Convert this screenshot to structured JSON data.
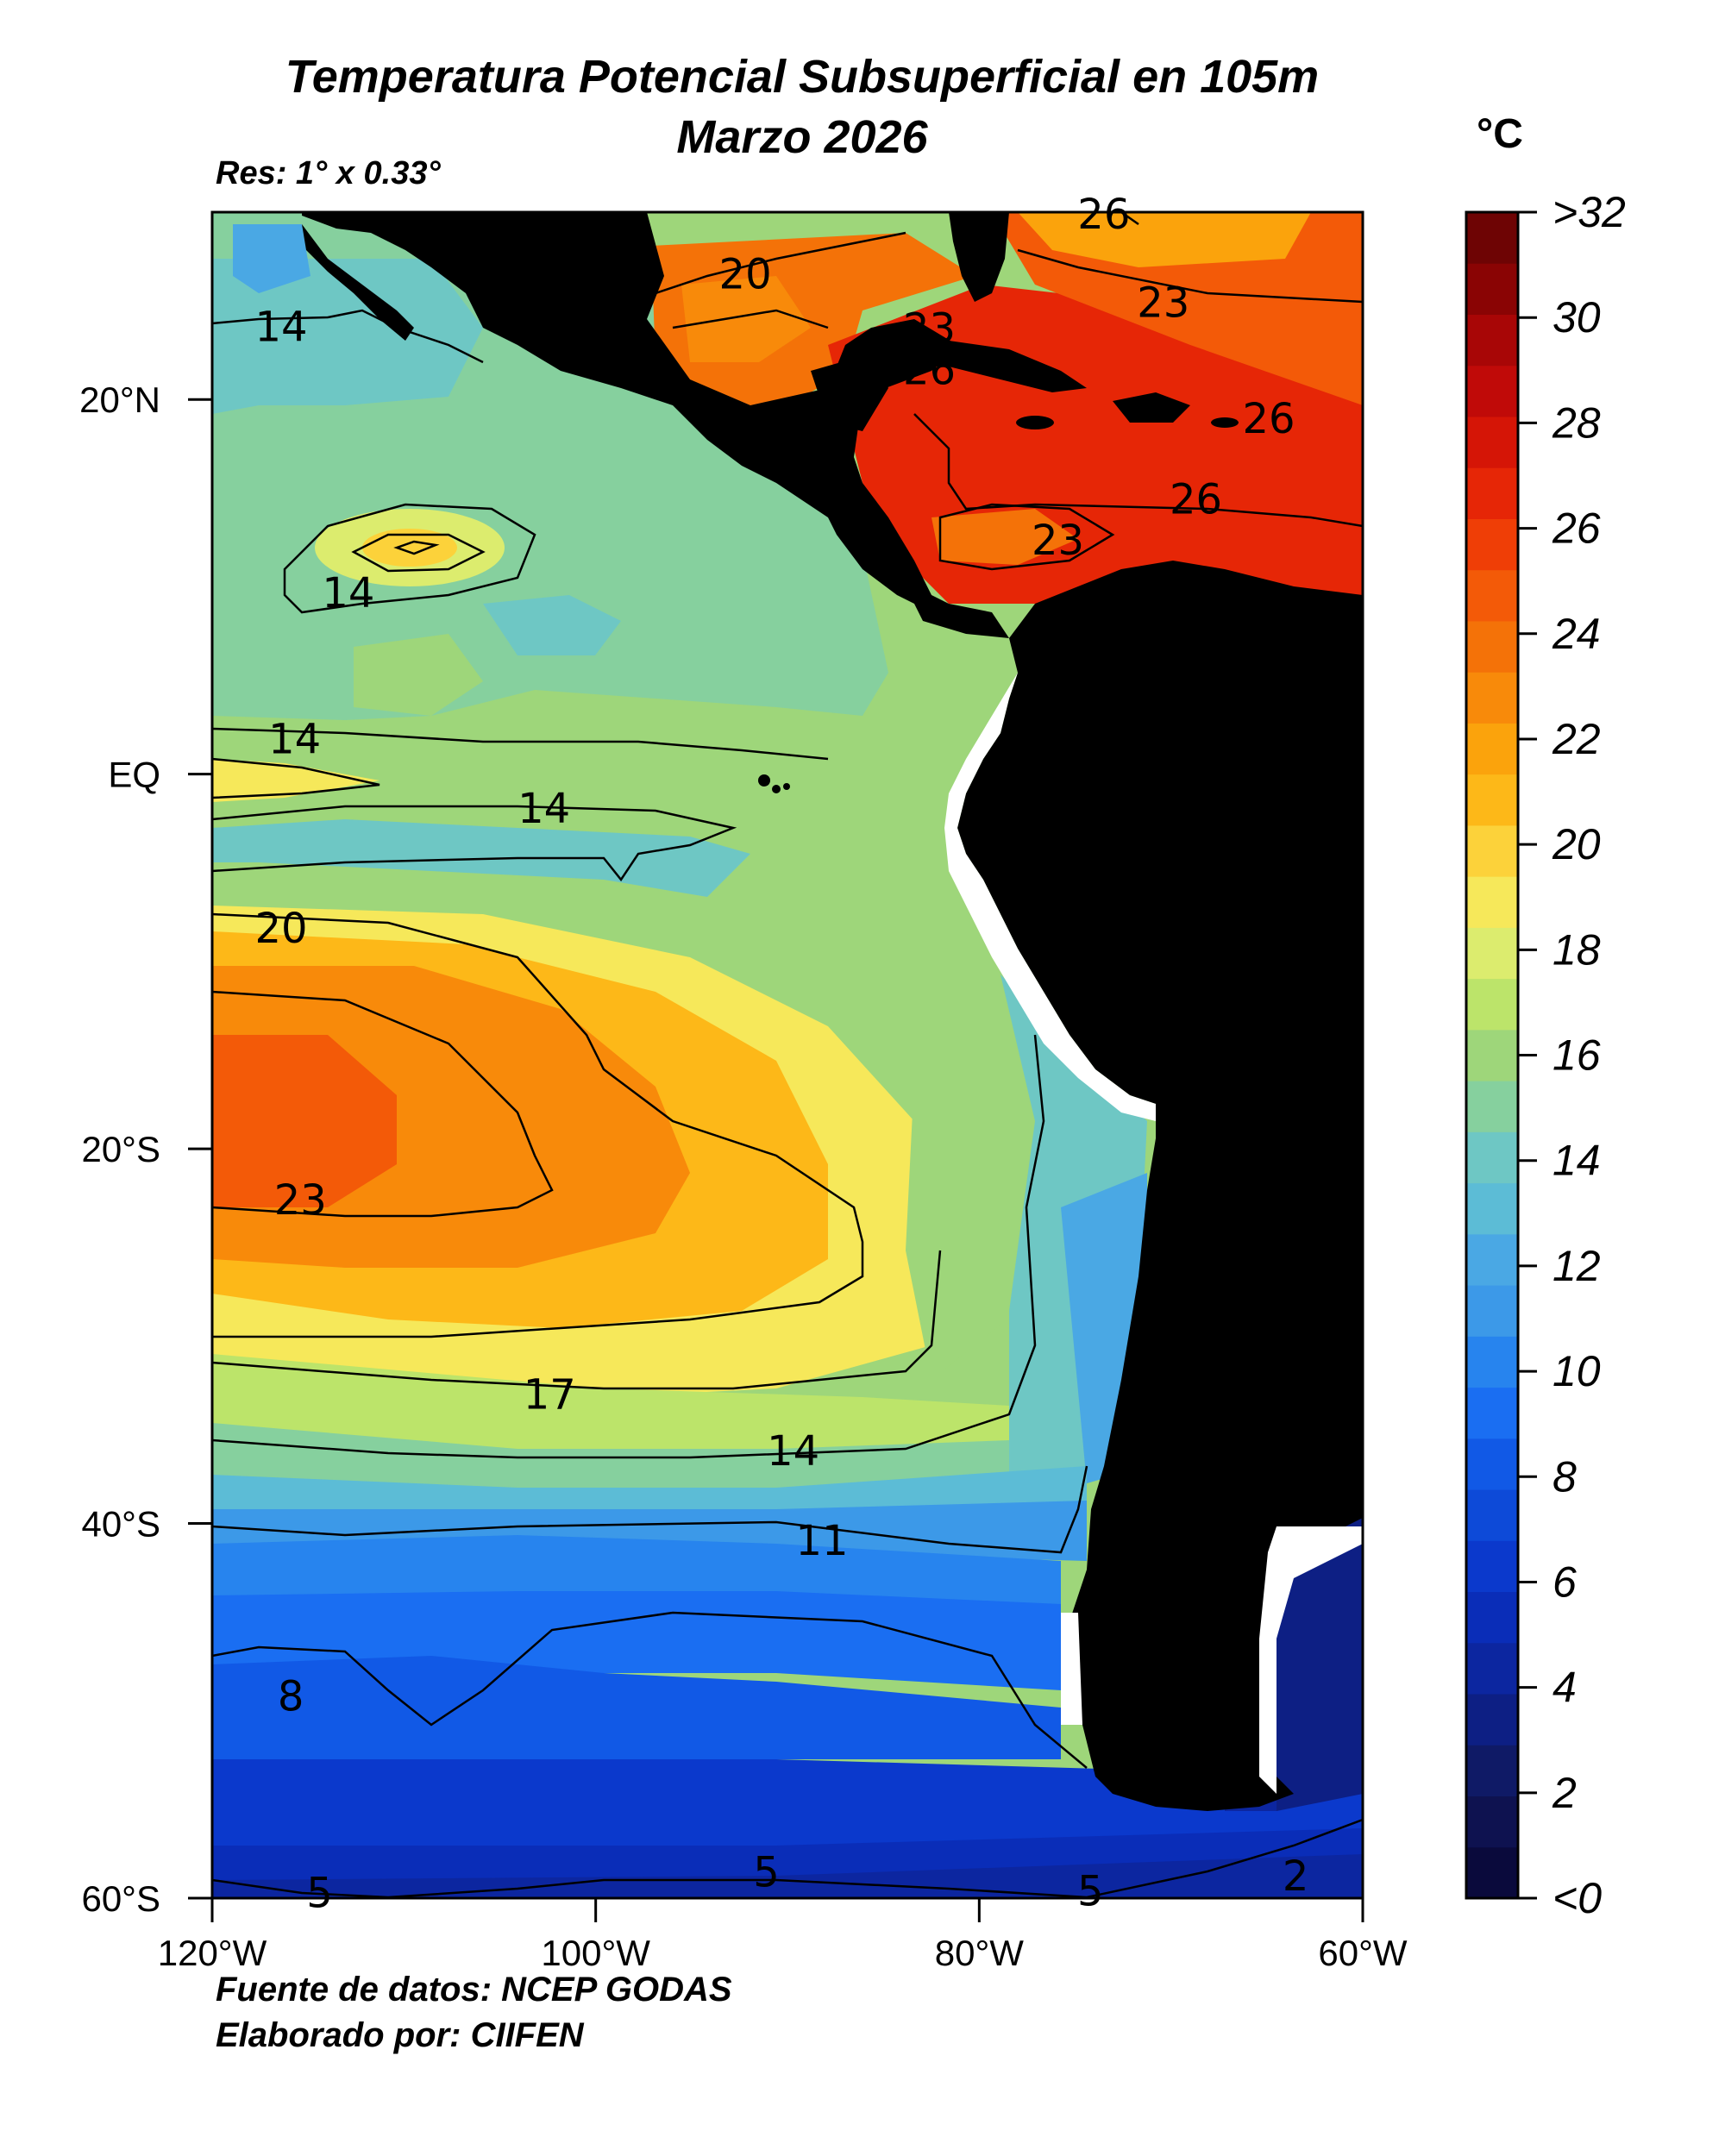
{
  "title": "Temperatura Potencial Subsuperficial en 105m",
  "subtitle": "Marzo 2026",
  "resolution": "Res: 1° x 0.33°",
  "unit": "°C",
  "footer": {
    "source": "Fuente de datos: NCEP GODAS",
    "author": "Elaborado por: CIIFEN"
  },
  "map": {
    "lon_range": [
      -120,
      -60
    ],
    "lat_range": [
      -60,
      30
    ],
    "x_ticks": [
      {
        "value": -120,
        "label": "120°W"
      },
      {
        "value": -100,
        "label": "100°W"
      },
      {
        "value": -80,
        "label": "80°W"
      },
      {
        "value": -60,
        "label": "60°W"
      }
    ],
    "y_ticks": [
      {
        "value": 20,
        "label": "20°N"
      },
      {
        "value": 0,
        "label": "EQ"
      },
      {
        "value": -20,
        "label": "20°S"
      },
      {
        "value": -40,
        "label": "40°S"
      },
      {
        "value": -60,
        "label": "60°S"
      }
    ],
    "contour_labels": [
      {
        "text": "26",
        "lon": -73.5,
        "lat": 29.9
      },
      {
        "text": "20",
        "lon": -92.2,
        "lat": 26.7
      },
      {
        "text": "23",
        "lon": -70.4,
        "lat": 25.2
      },
      {
        "text": "23",
        "lon": -82.6,
        "lat": 23.8
      },
      {
        "text": "26",
        "lon": -82.6,
        "lat": 21.6
      },
      {
        "text": "26",
        "lon": -64.9,
        "lat": 19.0
      },
      {
        "text": "26",
        "lon": -68.7,
        "lat": 14.7
      },
      {
        "text": "23",
        "lon": -75.9,
        "lat": 12.5
      },
      {
        "text": "14",
        "lon": -116.4,
        "lat": 23.9
      },
      {
        "text": "14",
        "lon": -112.9,
        "lat": 9.7
      },
      {
        "text": "14",
        "lon": -115.7,
        "lat": 1.9
      },
      {
        "text": "14",
        "lon": -102.7,
        "lat": -1.8
      },
      {
        "text": "20",
        "lon": -116.4,
        "lat": -8.2
      },
      {
        "text": "23",
        "lon": -115.4,
        "lat": -22.7
      },
      {
        "text": "17",
        "lon": -102.4,
        "lat": -33.1
      },
      {
        "text": "14",
        "lon": -89.7,
        "lat": -36.1
      },
      {
        "text": "11",
        "lon": -88.2,
        "lat": -40.9
      },
      {
        "text": "8",
        "lon": -115.9,
        "lat": -49.2
      },
      {
        "text": "5",
        "lon": -114.4,
        "lat": -59.7
      },
      {
        "text": "5",
        "lon": -91.1,
        "lat": -58.6
      },
      {
        "text": "5",
        "lon": -74.2,
        "lat": -59.6
      },
      {
        "text": "2",
        "lon": -63.5,
        "lat": -58.8
      }
    ]
  },
  "colorbar": {
    "min_label": "<0",
    "max_label": ">32",
    "labels": [
      "2",
      "4",
      "6",
      "8",
      "10",
      "12",
      "14",
      "16",
      "18",
      "20",
      "22",
      "24",
      "26",
      "28",
      "30"
    ],
    "colors": [
      "#0a0a3c",
      "#0e1250",
      "#0f1a66",
      "#0d1f84",
      "#0c26a0",
      "#0a2db8",
      "#0b39cc",
      "#0d4ad8",
      "#1159e6",
      "#1a6ef2",
      "#2784ee",
      "#3c99e8",
      "#4aa8e4",
      "#5cbcd6",
      "#6ec7c4",
      "#86d09e",
      "#9ed67a",
      "#bce46a",
      "#dcec6e",
      "#f6e85a",
      "#fcd23a",
      "#fdb818",
      "#fba30c",
      "#f88a0a",
      "#f47208",
      "#f35a08",
      "#ef3e06",
      "#e62606",
      "#d51506",
      "#c00a08",
      "#a80606",
      "#8a0404",
      "#6e0404"
    ]
  }
}
